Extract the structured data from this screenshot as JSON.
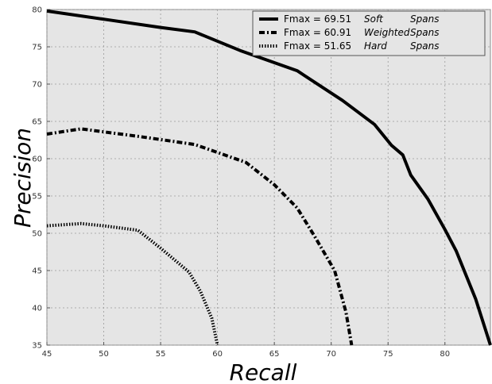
{
  "chart_data": {
    "type": "line",
    "xlabel": "Recall",
    "ylabel": "Precision",
    "xlim": [
      45,
      84
    ],
    "ylim": [
      35,
      80
    ],
    "xticks": [
      45,
      50,
      55,
      60,
      65,
      70,
      75,
      80
    ],
    "yticks": [
      35,
      40,
      45,
      50,
      55,
      60,
      65,
      70,
      75,
      80
    ],
    "grid": true,
    "legend_position": "top-right",
    "series": [
      {
        "name": "Fmax = 69.51",
        "label_col1": "Soft",
        "label_col2": "Spans",
        "style": "solid",
        "x": [
          45,
          50,
          55,
          58,
          62,
          67,
          71,
          73.8,
          75.3,
          76.3,
          77,
          78.5,
          80,
          81,
          82.7,
          84
        ],
        "y": [
          79.8,
          78.7,
          77.6,
          77.0,
          74.5,
          71.8,
          67.8,
          64.6,
          61.8,
          60.5,
          57.8,
          54.6,
          50.5,
          47.6,
          41.2,
          35.0
        ]
      },
      {
        "name": "Fmax = 60.91",
        "label_col1": "Weighted",
        "label_col2": "Spans",
        "style": "dashdot",
        "x": [
          45,
          48,
          50,
          53,
          58,
          62.5,
          65,
          67,
          68.5,
          70.3,
          71.3,
          71.8
        ],
        "y": [
          63.3,
          64.0,
          63.6,
          63.0,
          61.9,
          59.5,
          56.5,
          53.4,
          49.7,
          45.0,
          39.4,
          35.0
        ]
      },
      {
        "name": "Fmax = 51.65",
        "label_col1": "Hard",
        "label_col2": "Spans",
        "style": "dotted",
        "x": [
          45,
          48,
          50,
          53,
          55,
          57.5,
          58.5,
          59.5,
          60
        ],
        "y": [
          51.0,
          51.3,
          51.0,
          50.4,
          48.0,
          44.8,
          42.2,
          38.6,
          35.0
        ]
      }
    ]
  }
}
